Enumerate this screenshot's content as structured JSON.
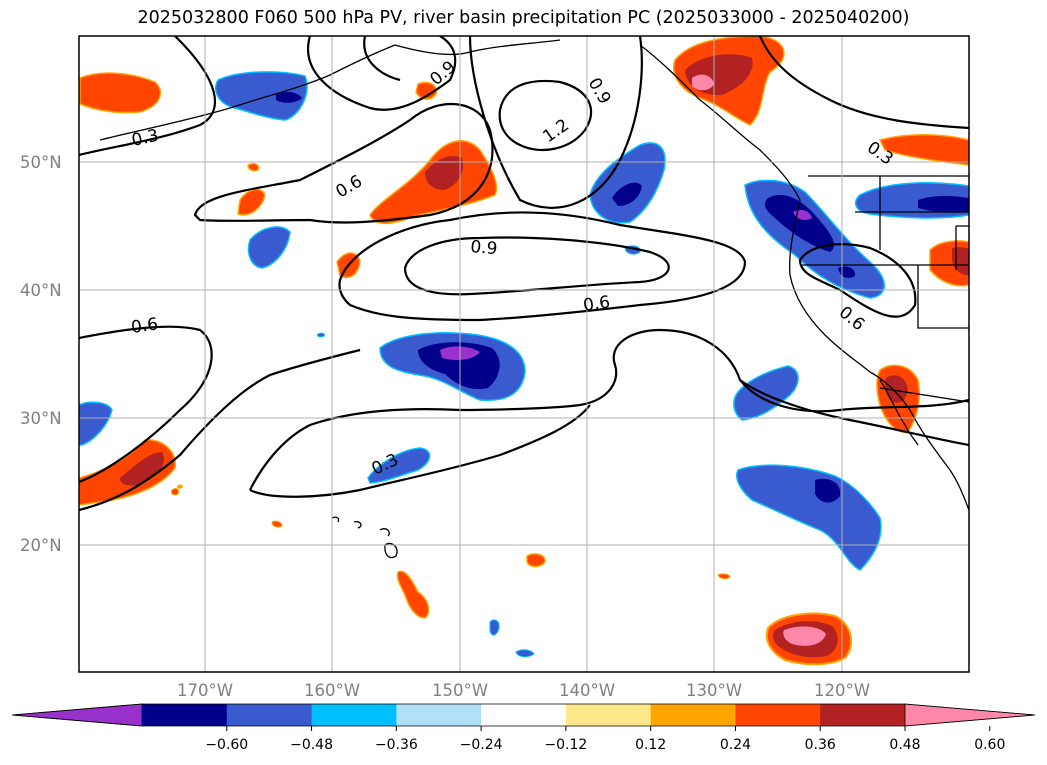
{
  "title": "2025032800 F060 500 hPa PV, river basin precipitation PC (2025033000 - 2025040200)",
  "map": {
    "grid": true,
    "lat_labels": [
      "50°N",
      "40°N",
      "30°N",
      "20°N"
    ],
    "lon_labels": [
      "170°W",
      "160°W",
      "150°W",
      "140°W",
      "130°W",
      "120°W"
    ],
    "contour_labels": [
      "0.3",
      "0.6",
      "0.9",
      "1.2",
      "0.9",
      "0.9",
      "0.6",
      "0.6",
      "0.3",
      "0.6",
      "0.3"
    ],
    "colors": {
      "contour": "#000000",
      "grid": "#b0b0b0",
      "coast": "#000000"
    }
  },
  "colorbar": {
    "orientation": "horizontal",
    "extend": "both",
    "colors": [
      "#9932cc",
      "#00008b",
      "#3a5bd0",
      "#00bfff",
      "#b0e0f8",
      "#ffffff",
      "#ffe88a",
      "#ffa500",
      "#ff4500",
      "#b22222",
      "#ff88aa"
    ],
    "tick_labels": [
      "−0.60",
      "−0.48",
      "−0.36",
      "−0.24",
      "−0.12",
      "0.12",
      "0.24",
      "0.36",
      "0.48",
      "0.60"
    ]
  }
}
